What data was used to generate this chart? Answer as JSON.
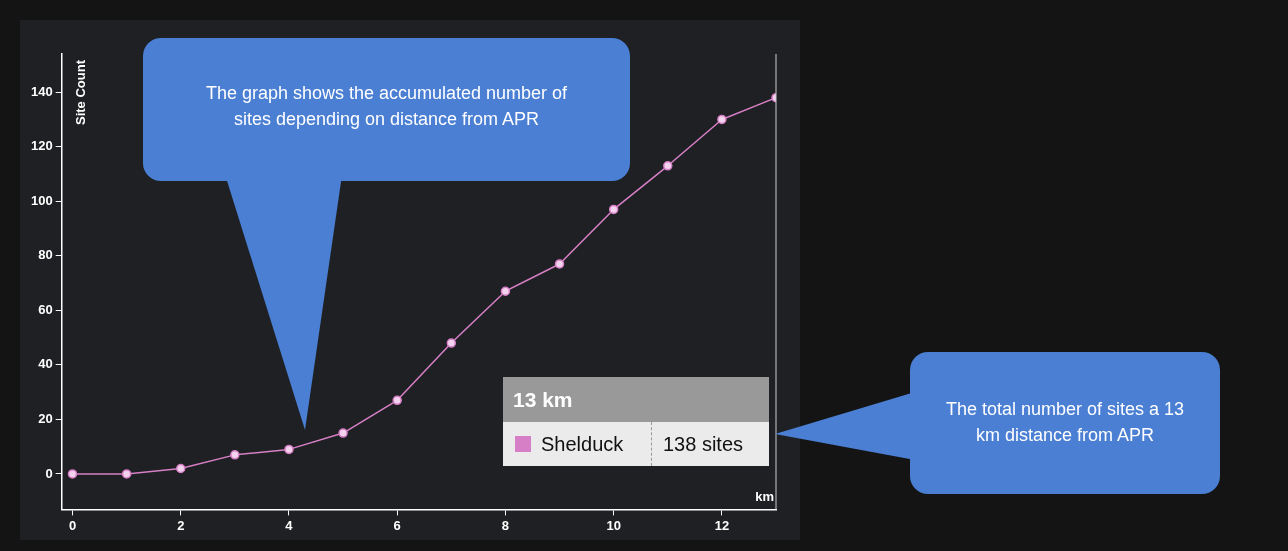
{
  "chart_data": {
    "type": "line",
    "ylabel": "Site Count",
    "xlabel": "km",
    "x": [
      0,
      1,
      2,
      3,
      4,
      5,
      6,
      7,
      8,
      9,
      10,
      11,
      12,
      13
    ],
    "series": [
      {
        "name": "Shelduck",
        "color": "#d77fc6",
        "values": [
          0,
          0,
          2,
          7,
          9,
          15,
          27,
          48,
          67,
          77,
          97,
          113,
          130,
          138
        ]
      }
    ],
    "xlim": [
      -0.2,
      13
    ],
    "xticks": [
      0,
      2,
      4,
      6,
      8,
      10,
      12
    ],
    "ylim": [
      -13,
      154
    ],
    "yticks": [
      0,
      20,
      40,
      60,
      80,
      100,
      120,
      140
    ],
    "marker": "circle",
    "line_style": "solid",
    "grid": false,
    "legend": "bottom right",
    "ref_lines": [
      {
        "axis": "x",
        "value": 13,
        "color": "#cccccc"
      }
    ],
    "annotations": [
      "13 km",
      "138 sites",
      "The graph shows the accumulated number of sites depending on distance from APR",
      "The total number of sites a 13 km distance from APR"
    ]
  }
}
